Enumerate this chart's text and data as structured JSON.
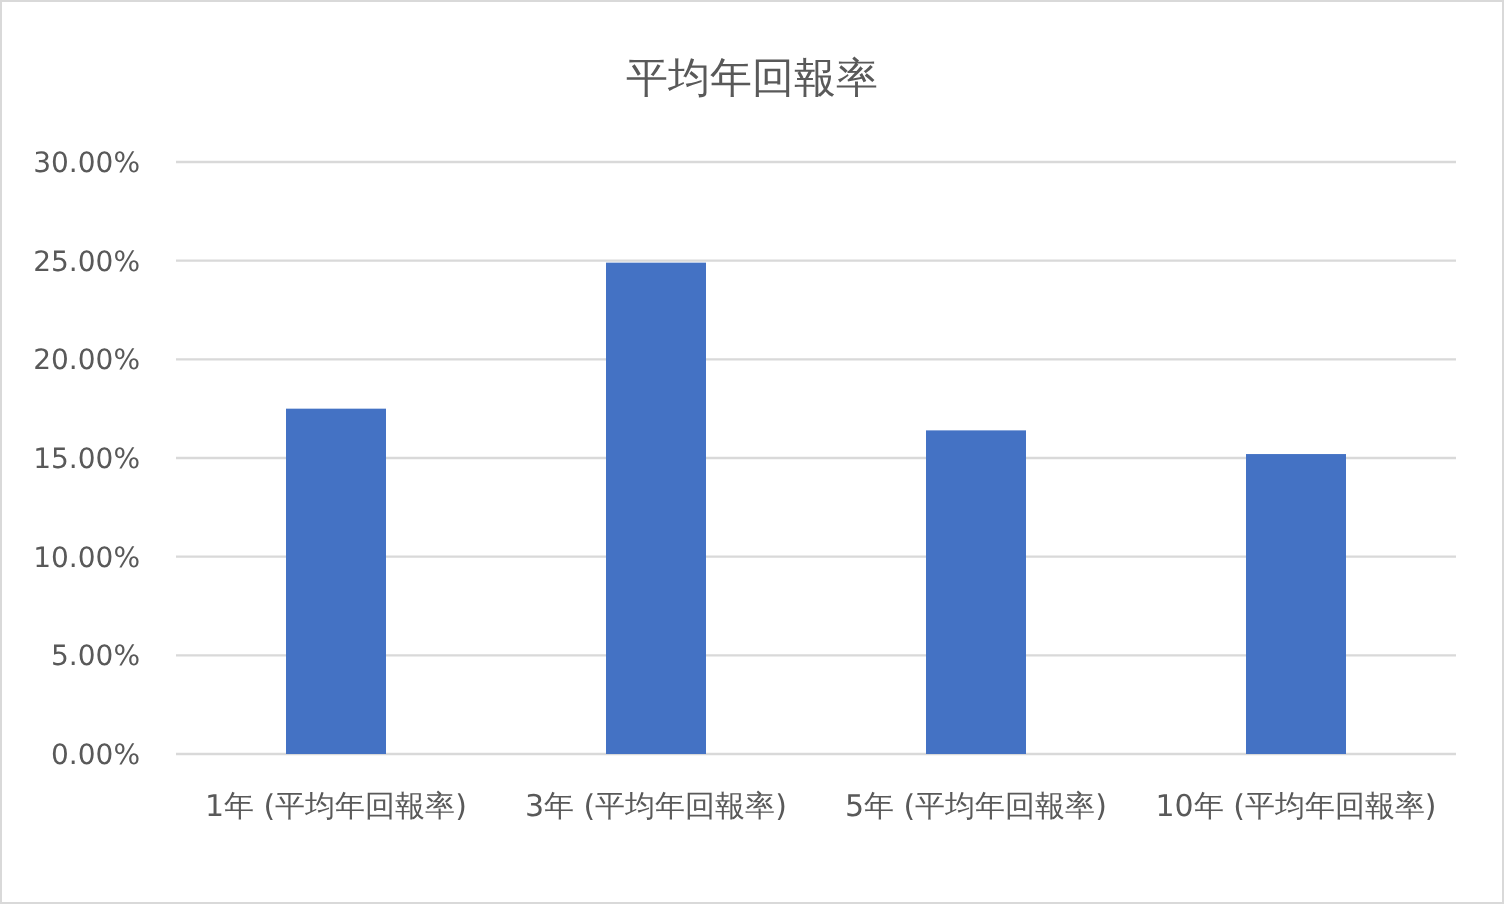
{
  "chart_data": {
    "type": "bar",
    "title": "平均年回報率",
    "categories": [
      "1年 (平均年回報率)",
      "3年 (平均年回報率)",
      "5年 (平均年回報率)",
      "10年 (平均年回報率)"
    ],
    "values": [
      17.5,
      24.9,
      16.4,
      15.2
    ],
    "color": "#4472c4",
    "ylim": [
      0,
      30
    ],
    "yticks": [
      {
        "value": 0,
        "label": "0.00%"
      },
      {
        "value": 5,
        "label": "5.00%"
      },
      {
        "value": 10,
        "label": "10.00%"
      },
      {
        "value": 15,
        "label": "15.00%"
      },
      {
        "value": 20,
        "label": "20.00%"
      },
      {
        "value": 25,
        "label": "25.00%"
      },
      {
        "value": 30,
        "label": "30.00%"
      }
    ],
    "grid": "y"
  }
}
